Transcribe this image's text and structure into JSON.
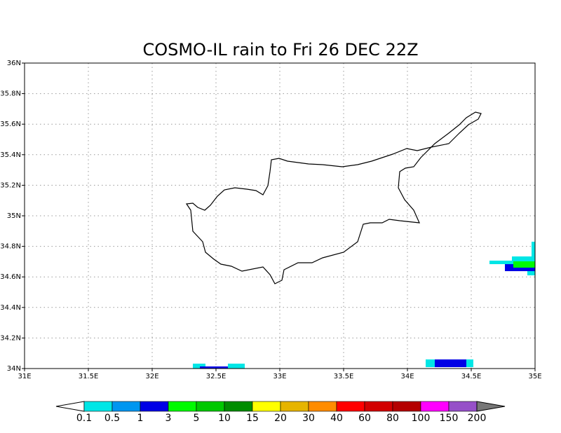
{
  "map": {
    "title": "COSMO-IL rain to Fri 26 DEC 22Z",
    "xlim": [
      31,
      35
    ],
    "ylim": [
      34,
      36
    ],
    "xticks": [
      {
        "value": 31,
        "label": "31E"
      },
      {
        "value": 31.5,
        "label": "31.5E"
      },
      {
        "value": 32,
        "label": "32E"
      },
      {
        "value": 32.5,
        "label": "32.5E"
      },
      {
        "value": 33,
        "label": "33E"
      },
      {
        "value": 33.5,
        "label": "33.5E"
      },
      {
        "value": 34,
        "label": "34E"
      },
      {
        "value": 34.5,
        "label": "34.5E"
      },
      {
        "value": 35,
        "label": "35E"
      }
    ],
    "yticks": [
      {
        "value": 34,
        "label": "34N"
      },
      {
        "value": 34.2,
        "label": "34.2N"
      },
      {
        "value": 34.4,
        "label": "34.4N"
      },
      {
        "value": 34.6,
        "label": "34.6N"
      },
      {
        "value": 34.8,
        "label": "34.8N"
      },
      {
        "value": 35,
        "label": "35N"
      },
      {
        "value": 35.2,
        "label": "35.2N"
      },
      {
        "value": 35.4,
        "label": "35.4N"
      },
      {
        "value": 35.6,
        "label": "35.6N"
      },
      {
        "value": 35.8,
        "label": "35.8N"
      },
      {
        "value": 36,
        "label": "36N"
      }
    ],
    "grid": true,
    "colorbar": {
      "levels": [
        0.1,
        0.5,
        1,
        3,
        5,
        10,
        15,
        20,
        30,
        40,
        60,
        80,
        100,
        150,
        200
      ],
      "colors": [
        "#ffffff",
        "#00e6e6",
        "#0096f0",
        "#0000e6",
        "#00fa00",
        "#00c800",
        "#008c00",
        "#ffff00",
        "#e6b400",
        "#ff8c00",
        "#ff0000",
        "#d20000",
        "#b40000",
        "#ff00ff",
        "#9650c8",
        "#777777"
      ]
    }
  }
}
